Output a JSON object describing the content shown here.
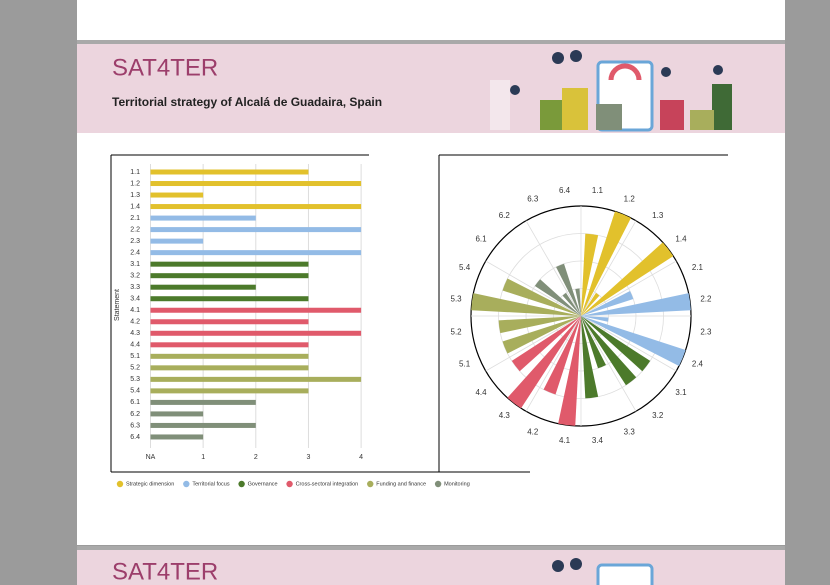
{
  "header": {
    "title": "SAT4TER",
    "subtitle": "Territorial strategy of Alcalá de Guadaira, Spain"
  },
  "next_page": {
    "title": "SAT4TER"
  },
  "chart_data": [
    {
      "type": "hbar",
      "y_label": "Statement",
      "categories": [
        "1.1",
        "1.2",
        "1.3",
        "1.4",
        "2.1",
        "2.2",
        "2.3",
        "2.4",
        "3.1",
        "3.2",
        "3.3",
        "3.4",
        "4.1",
        "4.2",
        "4.3",
        "4.4",
        "5.1",
        "5.2",
        "5.3",
        "5.4",
        "6.1",
        "6.2",
        "6.3",
        "6.4"
      ],
      "series": [
        {
          "name": "Strategic dimension",
          "color": "#e2c12c",
          "values": [
            3,
            4,
            1,
            4,
            null,
            null,
            null,
            null,
            null,
            null,
            null,
            null,
            null,
            null,
            null,
            null,
            null,
            null,
            null,
            null,
            null,
            null,
            null,
            null
          ]
        },
        {
          "name": "Territorial focus",
          "color": "#93bbe6",
          "values": [
            null,
            null,
            null,
            null,
            2,
            4,
            1,
            4,
            null,
            null,
            null,
            null,
            null,
            null,
            null,
            null,
            null,
            null,
            null,
            null,
            null,
            null,
            null,
            null
          ]
        },
        {
          "name": "Governance",
          "color": "#4c7a2b",
          "values": [
            null,
            null,
            null,
            null,
            null,
            null,
            null,
            null,
            3,
            3,
            2,
            3,
            null,
            null,
            null,
            null,
            null,
            null,
            null,
            null,
            null,
            null,
            null,
            null
          ]
        },
        {
          "name": "Cross-sectoral integration",
          "color": "#e05a6b",
          "values": [
            null,
            null,
            null,
            null,
            null,
            null,
            null,
            null,
            null,
            null,
            null,
            null,
            4,
            3,
            4,
            3,
            null,
            null,
            null,
            null,
            null,
            null,
            null,
            null
          ]
        },
        {
          "name": "Funding and finance",
          "color": "#a8ae5c",
          "values": [
            null,
            null,
            null,
            null,
            null,
            null,
            null,
            null,
            null,
            null,
            null,
            null,
            null,
            null,
            null,
            null,
            3,
            3,
            4,
            3,
            null,
            null,
            null,
            null
          ]
        },
        {
          "name": "Monitoring",
          "color": "#808f79",
          "values": [
            null,
            null,
            null,
            null,
            null,
            null,
            null,
            null,
            null,
            null,
            null,
            null,
            null,
            null,
            null,
            null,
            null,
            null,
            null,
            null,
            2,
            1,
            2,
            1
          ]
        }
      ],
      "xlim": [
        -0.75,
        4.15
      ],
      "xticks": [
        {
          "value": 0,
          "label": "NA"
        },
        1,
        2,
        3,
        4
      ],
      "grid": true
    },
    {
      "type": "polar_bar",
      "categories": [
        "1.1",
        "1.2",
        "1.3",
        "1.4",
        "2.1",
        "2.2",
        "2.3",
        "2.4",
        "3.1",
        "3.2",
        "3.3",
        "3.4",
        "4.1",
        "4.2",
        "4.3",
        "4.4",
        "5.1",
        "5.2",
        "5.3",
        "5.4",
        "6.1",
        "6.2",
        "6.3",
        "6.4"
      ],
      "series": [
        {
          "color": "#e2c12c",
          "values": [
            3,
            4,
            1,
            4,
            null,
            null,
            null,
            null,
            null,
            null,
            null,
            null,
            null,
            null,
            null,
            null,
            null,
            null,
            null,
            null,
            null,
            null,
            null,
            null
          ]
        },
        {
          "color": "#93bbe6",
          "values": [
            null,
            null,
            null,
            null,
            2,
            4,
            1,
            4,
            null,
            null,
            null,
            null,
            null,
            null,
            null,
            null,
            null,
            null,
            null,
            null,
            null,
            null,
            null,
            null
          ]
        },
        {
          "color": "#4c7a2b",
          "values": [
            null,
            null,
            null,
            null,
            null,
            null,
            null,
            null,
            3,
            3,
            2,
            3,
            null,
            null,
            null,
            null,
            null,
            null,
            null,
            null,
            null,
            null,
            null,
            null
          ]
        },
        {
          "color": "#e05a6b",
          "values": [
            null,
            null,
            null,
            null,
            null,
            null,
            null,
            null,
            null,
            null,
            null,
            null,
            4,
            3,
            4,
            3,
            null,
            null,
            null,
            null,
            null,
            null,
            null,
            null
          ]
        },
        {
          "color": "#a8ae5c",
          "values": [
            null,
            null,
            null,
            null,
            null,
            null,
            null,
            null,
            null,
            null,
            null,
            null,
            null,
            null,
            null,
            null,
            3,
            3,
            4,
            3,
            null,
            null,
            null,
            null
          ]
        },
        {
          "color": "#808f79",
          "values": [
            null,
            null,
            null,
            null,
            null,
            null,
            null,
            null,
            null,
            null,
            null,
            null,
            null,
            null,
            null,
            null,
            null,
            null,
            null,
            null,
            2,
            1,
            2,
            1
          ]
        }
      ],
      "rlim": [
        0,
        4
      ],
      "rticks": [
        1,
        2,
        3,
        4
      ],
      "grid": true
    }
  ]
}
